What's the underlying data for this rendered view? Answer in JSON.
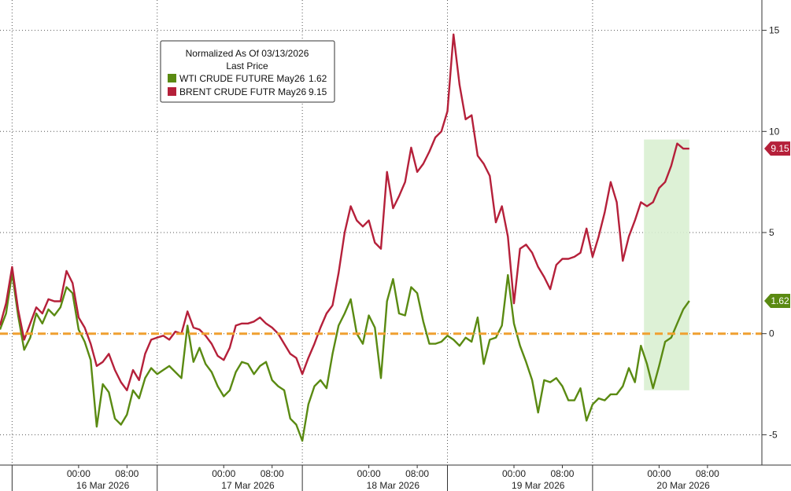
{
  "chart_data": {
    "type": "line",
    "legend": {
      "title_line1": "Normalized As Of 03/13/2026",
      "title_line2": "Last Price",
      "placement": "top-left"
    },
    "y_ticks": [
      "15",
      "10",
      "5",
      "0",
      "-5"
    ],
    "y_tick_values": [
      15,
      10,
      5,
      0,
      -5
    ],
    "ylim": [
      -6.5,
      16.5
    ],
    "grid": true,
    "x_time_labels": [
      "00:00",
      "08:00",
      "00:00",
      "08:00",
      "00:00",
      "08:00",
      "00:00",
      "08:00",
      "00:00",
      "08:00"
    ],
    "x_time_values": [
      11,
      19,
      35,
      43,
      59,
      67,
      83,
      91,
      107,
      115
    ],
    "x_date_labels": [
      "16 Mar 2026",
      "17 Mar 2026",
      "18 Mar 2026",
      "19 Mar 2026",
      "20 Mar 2026"
    ],
    "x_date_values": [
      15,
      39,
      63,
      87,
      111
    ],
    "xlim": [
      -2,
      124
    ],
    "day_boundaries": [
      0,
      24,
      48,
      72,
      96
    ],
    "reference_line": {
      "value": 0,
      "color": "#f0a030"
    },
    "highlight": {
      "x": [
        104.5,
        112
      ],
      "y": [
        -2.8,
        9.6
      ],
      "color": "#d9efd2"
    },
    "series": [
      {
        "name": "WTI CRUDE FUTURE May26",
        "last_value_label": "1.62",
        "last_value": 1.62,
        "color": "#5a8a12",
        "x": [
          -2,
          -1,
          0,
          1,
          2,
          3,
          4,
          5,
          6,
          7,
          8,
          9,
          10,
          11,
          12,
          13,
          14,
          15,
          16,
          17,
          18,
          19,
          20,
          21,
          22,
          23,
          24,
          25,
          26,
          27,
          28,
          29,
          30,
          31,
          32,
          33,
          34,
          35,
          36,
          37,
          38,
          39,
          40,
          41,
          42,
          43,
          44,
          45,
          46,
          47,
          48,
          49,
          50,
          51,
          52,
          53,
          54,
          55,
          56,
          57,
          58,
          59,
          60,
          61,
          62,
          63,
          64,
          65,
          66,
          67,
          68,
          69,
          70,
          71,
          72,
          73,
          74,
          75,
          76,
          77,
          78,
          79,
          80,
          81,
          82,
          83,
          84,
          85,
          86,
          87,
          88,
          89,
          90,
          91,
          92,
          93,
          94,
          95,
          96,
          97,
          98,
          99,
          100,
          101,
          102,
          103,
          104,
          105,
          106,
          107,
          108,
          109,
          110,
          111,
          112
        ],
        "values": [
          0.2,
          1.0,
          3.0,
          0.9,
          -0.8,
          -0.2,
          1.0,
          0.5,
          1.2,
          0.9,
          1.3,
          2.3,
          2.0,
          0.2,
          -0.4,
          -1.3,
          -4.6,
          -2.5,
          -2.9,
          -4.2,
          -4.5,
          -4.0,
          -2.8,
          -3.2,
          -2.2,
          -1.7,
          -2.0,
          -1.8,
          -1.6,
          -1.9,
          -2.2,
          0.4,
          -1.4,
          -0.7,
          -1.5,
          -1.9,
          -2.6,
          -3.1,
          -2.8,
          -1.9,
          -1.4,
          -1.5,
          -2.0,
          -1.6,
          -1.4,
          -2.3,
          -2.6,
          -2.8,
          -4.2,
          -4.5,
          -5.3,
          -3.5,
          -2.6,
          -2.3,
          -2.7,
          -1.0,
          0.4,
          1.0,
          1.7,
          0.0,
          -0.5,
          0.9,
          0.3,
          -2.2,
          1.6,
          2.7,
          1.0,
          0.9,
          2.3,
          2.0,
          0.6,
          -0.5,
          -0.5,
          -0.4,
          -0.1,
          -0.3,
          -0.6,
          -0.2,
          -0.4,
          0.8,
          -1.5,
          -0.3,
          -0.2,
          0.4,
          2.9,
          0.5,
          -0.6,
          -1.4,
          -2.3,
          -3.9,
          -2.3,
          -2.4,
          -2.2,
          -2.6,
          -3.3,
          -3.3,
          -2.7,
          -4.3,
          -3.5,
          -3.2,
          -3.3,
          -3.0,
          -3.0,
          -2.6,
          -1.7,
          -2.4,
          -0.6,
          -1.5,
          -2.7,
          -1.6,
          -0.4,
          -0.2,
          0.5,
          1.2,
          1.62
        ]
      },
      {
        "name": "BRENT CRUDE FUTR May26",
        "last_value_label": "9.15",
        "last_value": 9.15,
        "color": "#b5203a",
        "x": [
          -2,
          -1,
          0,
          1,
          2,
          3,
          4,
          5,
          6,
          7,
          8,
          9,
          10,
          11,
          12,
          13,
          14,
          15,
          16,
          17,
          18,
          19,
          20,
          21,
          22,
          23,
          24,
          25,
          26,
          27,
          28,
          29,
          30,
          31,
          32,
          33,
          34,
          35,
          36,
          37,
          38,
          39,
          40,
          41,
          42,
          43,
          44,
          45,
          46,
          47,
          48,
          49,
          50,
          51,
          52,
          53,
          54,
          55,
          56,
          57,
          58,
          59,
          60,
          61,
          62,
          63,
          64,
          65,
          66,
          67,
          68,
          69,
          70,
          71,
          72,
          73,
          74,
          75,
          76,
          77,
          78,
          79,
          80,
          81,
          82,
          83,
          84,
          85,
          86,
          87,
          88,
          89,
          90,
          91,
          92,
          93,
          94,
          95,
          96,
          97,
          98,
          99,
          100,
          101,
          102,
          103,
          104,
          105,
          106,
          107,
          108,
          109,
          110,
          111,
          112
        ],
        "values": [
          0.4,
          1.5,
          3.3,
          1.2,
          -0.3,
          0.5,
          1.3,
          1.0,
          1.7,
          1.6,
          1.6,
          3.1,
          2.5,
          0.8,
          0.3,
          -0.5,
          -1.6,
          -1.4,
          -1.0,
          -1.8,
          -2.4,
          -2.8,
          -1.8,
          -2.3,
          -1.0,
          -0.3,
          -0.2,
          -0.1,
          -0.3,
          0.1,
          0.0,
          1.1,
          0.3,
          0.2,
          -0.1,
          -0.5,
          -1.1,
          -1.3,
          -0.7,
          0.4,
          0.5,
          0.5,
          0.6,
          0.8,
          0.5,
          0.3,
          0.0,
          -0.5,
          -1.0,
          -1.2,
          -2.0,
          -1.2,
          -0.5,
          0.3,
          1.0,
          1.4,
          3.0,
          5.0,
          6.3,
          5.6,
          5.3,
          5.6,
          4.5,
          4.2,
          8.0,
          6.2,
          6.8,
          7.5,
          9.2,
          8.0,
          8.4,
          9.0,
          9.7,
          10.0,
          11.0,
          14.8,
          12.3,
          10.6,
          10.8,
          8.8,
          8.4,
          7.8,
          5.5,
          6.3,
          4.8,
          1.5,
          4.2,
          4.4,
          4.0,
          3.3,
          2.8,
          2.2,
          3.4,
          3.7,
          3.7,
          3.8,
          4.0,
          5.2,
          3.8,
          4.8,
          6.0,
          7.5,
          6.5,
          3.6,
          4.8,
          5.6,
          6.5,
          6.3,
          6.5,
          7.2,
          7.5,
          8.3,
          9.4,
          9.15,
          9.15
        ]
      }
    ]
  }
}
